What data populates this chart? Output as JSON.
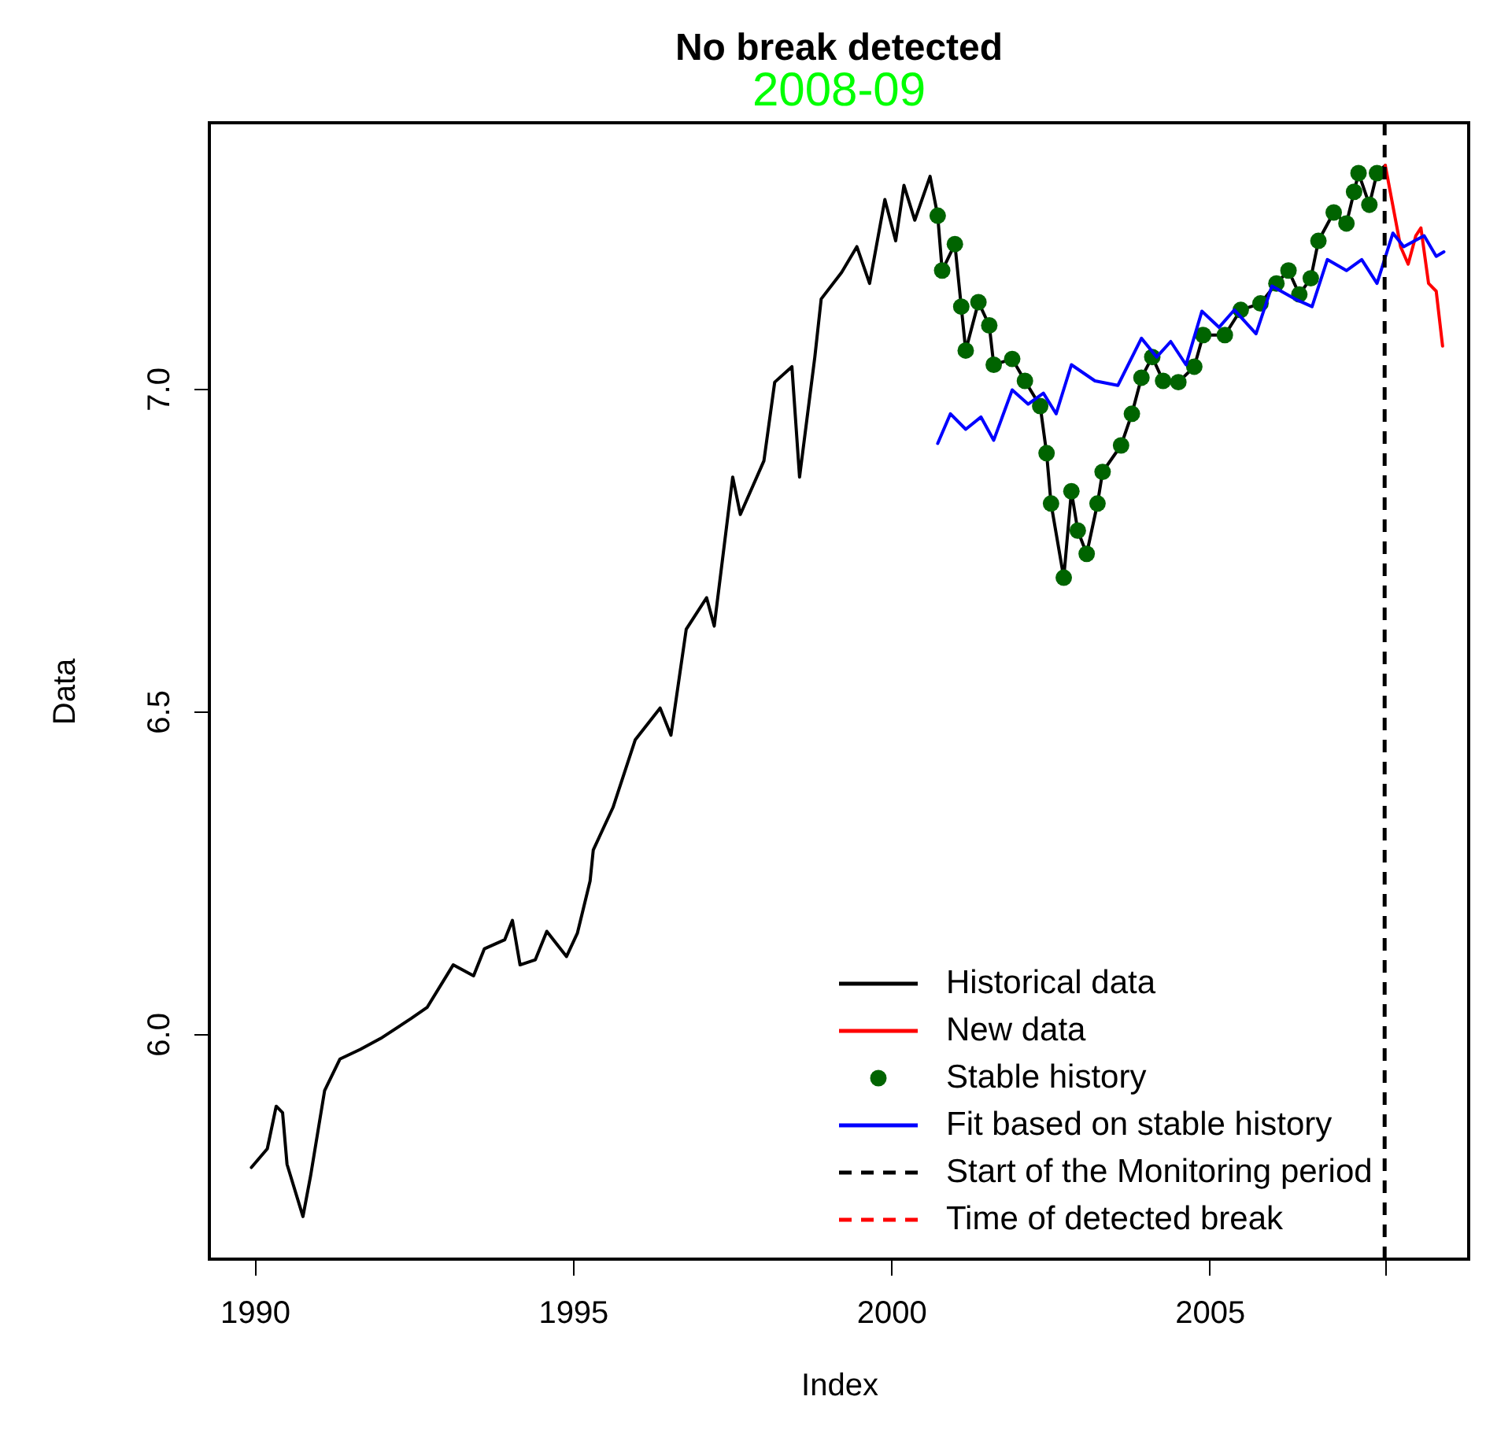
{
  "chart_data": {
    "type": "line",
    "title": "No break detected",
    "subtitle": "2008-09",
    "xlabel": "Index",
    "ylabel": "Data",
    "xlim": [
      1989.29,
      2009.07
    ],
    "ylim": [
      5.651,
      7.412
    ],
    "xticks": [
      1990,
      1995,
      2000,
      2005,
      {
        "value": 2007.75,
        "label": null
      }
    ],
    "yticks": [
      {
        "value": 6,
        "label": "6.0"
      },
      6.5,
      {
        "value": 7,
        "label": "7.0"
      }
    ],
    "grid": false,
    "legend": "bottom right",
    "series": [
      {
        "name": "Historical data",
        "color": "#000000",
        "line_style": "solid",
        "x": [
          1989.95,
          1990.2,
          1990.34,
          1990.44,
          1990.51,
          1990.76,
          1990.88,
          1991.1,
          1991.34,
          1991.66,
          1991.98,
          1992.46,
          1992.71,
          1993.12,
          1993.44,
          1993.61,
          1993.93,
          1994.05,
          1994.17,
          1994.41,
          1994.59,
          1994.9,
          1995.07,
          1995.27,
          1995.32,
          1995.63,
          1995.98,
          1996.37,
          1996.54,
          1996.78,
          1997.1,
          1997.22,
          1997.51,
          1997.63,
          1998.0,
          1998.17,
          1998.44,
          1998.56,
          1998.8,
          1998.9,
          1999.22,
          1999.46,
          1999.66,
          1999.9,
          2000.07,
          2000.2,
          2000.37,
          2000.61,
          2000.73,
          2000.8,
          2001.0,
          2001.1,
          2001.17,
          2001.37,
          2001.54,
          2001.61,
          2001.9,
          2002.1,
          2002.34,
          2002.44,
          2002.51,
          2002.71,
          2002.83,
          2002.93,
          2003.07,
          2003.24,
          2003.32,
          2003.61,
          2003.78,
          2003.93,
          2004.1,
          2004.27,
          2004.51,
          2004.76,
          2004.9,
          2005.24,
          2005.49,
          2005.8,
          2006.05,
          2006.24,
          2006.41,
          2006.59,
          2006.71,
          2006.95,
          2007.15,
          2007.27,
          2007.34,
          2007.51,
          2007.63,
          2007.76
        ],
        "values": [
          5.793,
          5.822,
          5.888,
          5.878,
          5.798,
          5.717,
          5.78,
          5.912,
          5.961,
          5.976,
          5.993,
          6.024,
          6.041,
          6.107,
          6.09,
          6.132,
          6.146,
          6.176,
          6.107,
          6.115,
          6.159,
          6.12,
          6.156,
          6.237,
          6.285,
          6.351,
          6.456,
          6.505,
          6.463,
          6.627,
          6.676,
          6.632,
          6.863,
          6.805,
          6.888,
          7.01,
          7.034,
          6.863,
          7.049,
          7.139,
          7.18,
          7.22,
          7.163,
          7.293,
          7.229,
          7.315,
          7.261,
          7.329,
          7.268,
          7.183,
          7.224,
          7.127,
          7.059,
          7.134,
          7.098,
          7.037,
          7.046,
          7.012,
          6.973,
          6.9,
          6.822,
          6.707,
          6.841,
          6.78,
          6.744,
          6.822,
          6.871,
          6.912,
          6.961,
          7.017,
          7.049,
          7.012,
          7.01,
          7.034,
          7.083,
          7.083,
          7.122,
          7.132,
          7.163,
          7.183,
          7.146,
          7.171,
          7.229,
          7.273,
          7.256,
          7.305,
          7.334,
          7.285,
          7.334,
          7.346
        ]
      },
      {
        "name": "New data",
        "color": "#ff0000",
        "line_style": "solid",
        "x": [
          2007.76,
          2008.0,
          2008.12,
          2008.24,
          2008.32,
          2008.44,
          2008.56,
          2008.66
        ],
        "values": [
          7.346,
          7.22,
          7.193,
          7.237,
          7.249,
          7.163,
          7.151,
          7.066
        ]
      },
      {
        "name": "Stable history",
        "type": "scatter",
        "color": "#006400",
        "marker": "circle",
        "x": [
          2000.73,
          2000.8,
          2001.0,
          2001.1,
          2001.17,
          2001.37,
          2001.54,
          2001.61,
          2001.9,
          2002.1,
          2002.34,
          2002.44,
          2002.51,
          2002.71,
          2002.83,
          2002.93,
          2003.07,
          2003.24,
          2003.32,
          2003.61,
          2003.78,
          2003.93,
          2004.1,
          2004.27,
          2004.51,
          2004.76,
          2004.9,
          2005.24,
          2005.49,
          2005.8,
          2006.05,
          2006.24,
          2006.41,
          2006.59,
          2006.71,
          2006.95,
          2007.15,
          2007.27,
          2007.34,
          2007.51,
          2007.63
        ],
        "values": [
          7.268,
          7.183,
          7.224,
          7.127,
          7.059,
          7.134,
          7.098,
          7.037,
          7.046,
          7.012,
          6.973,
          6.9,
          6.822,
          6.707,
          6.841,
          6.78,
          6.744,
          6.822,
          6.871,
          6.912,
          6.961,
          7.017,
          7.049,
          7.012,
          7.01,
          7.034,
          7.083,
          7.083,
          7.122,
          7.132,
          7.163,
          7.183,
          7.146,
          7.171,
          7.229,
          7.273,
          7.256,
          7.305,
          7.334,
          7.285,
          7.334
        ]
      },
      {
        "name": "Fit based on stable history",
        "color": "#0000ff",
        "line_style": "solid",
        "x": [
          2000.73,
          2000.93,
          2001.17,
          2001.41,
          2001.61,
          2001.9,
          2002.15,
          2002.39,
          2002.59,
          2002.83,
          2003.2,
          2003.56,
          2003.93,
          2004.17,
          2004.39,
          2004.63,
          2004.88,
          2005.15,
          2005.39,
          2005.73,
          2005.98,
          2006.34,
          2006.61,
          2006.85,
          2007.15,
          2007.39,
          2007.63,
          2007.88,
          2008.05,
          2008.37,
          2008.56,
          2008.68
        ],
        "values": [
          6.915,
          6.961,
          6.937,
          6.956,
          6.92,
          6.998,
          6.976,
          6.993,
          6.961,
          7.037,
          7.012,
          7.005,
          7.078,
          7.049,
          7.073,
          7.037,
          7.12,
          7.095,
          7.122,
          7.085,
          7.159,
          7.139,
          7.127,
          7.2,
          7.183,
          7.2,
          7.163,
          7.241,
          7.22,
          7.237,
          7.205,
          7.212
        ]
      },
      {
        "name": "Time of detected break",
        "color": "#ff0000",
        "line_style": "dashed"
      }
    ],
    "ref_lines": [
      {
        "axis": "x",
        "value": 2007.75,
        "label": "Start of the Monitoring period",
        "color": "#000000",
        "line_style": "dashed"
      }
    ]
  }
}
